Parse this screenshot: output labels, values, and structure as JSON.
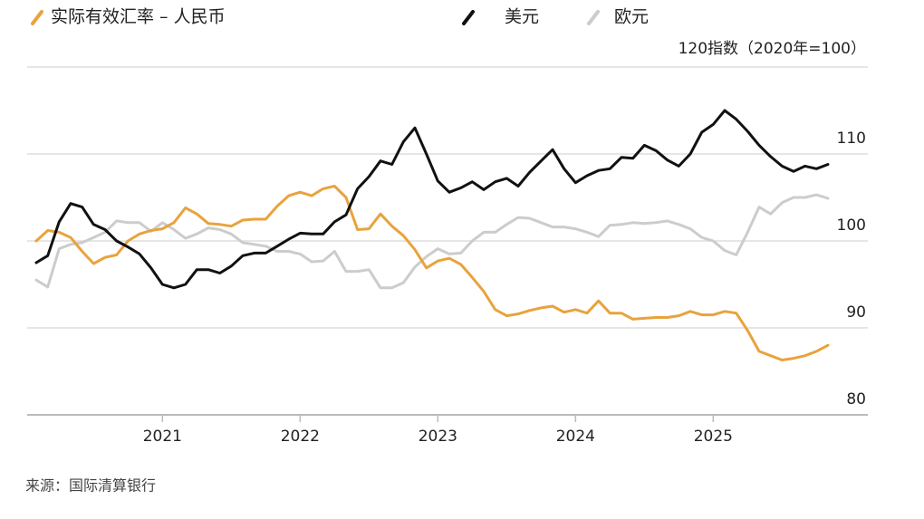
{
  "chart_data": {
    "type": "line",
    "categories": [
      null,
      null,
      null,
      null,
      null,
      null,
      null,
      null,
      null,
      null,
      null,
      "2021",
      null,
      null,
      null,
      null,
      null,
      null,
      null,
      null,
      null,
      null,
      null,
      "2022",
      null,
      null,
      null,
      null,
      null,
      null,
      null,
      null,
      null,
      null,
      null,
      "2023",
      null,
      null,
      null,
      null,
      null,
      null,
      null,
      null,
      null,
      null,
      null,
      "2024",
      null,
      null,
      null,
      null,
      null,
      null,
      null,
      null,
      null,
      null,
      null,
      "2025",
      null,
      null,
      null,
      null,
      null,
      null,
      null,
      null,
      null,
      null
    ],
    "series": [
      {
        "name": "实际有效汇率 – 人民币",
        "color": "#e8a33d",
        "values": [
          100,
          101.2,
          101,
          100.4,
          98.8,
          97.4,
          98.1,
          98.4,
          100,
          100.8,
          101.2,
          101.4,
          102.1,
          103.8,
          103.1,
          102,
          101.9,
          101.7,
          102.4,
          102.5,
          102.5,
          104,
          105.2,
          105.6,
          105.2,
          106,
          106.3,
          105,
          101.3,
          101.4,
          103.1,
          101.7,
          100.6,
          99,
          96.9,
          97.7,
          98,
          97.3,
          95.8,
          94.2,
          92.1,
          91.4,
          91.6,
          92,
          92.3,
          92.5,
          91.8,
          92.1,
          91.7,
          93.1,
          91.7,
          91.7,
          91,
          91.1,
          91.2,
          91.2,
          91.4,
          91.9,
          91.5,
          91.5,
          91.9,
          91.7,
          89.7,
          87.3,
          86.8,
          86.3,
          86.5,
          86.8,
          87.3,
          88
        ]
      },
      {
        "name": "美元",
        "color": "#111111",
        "values": [
          97.5,
          98.3,
          102.2,
          104.3,
          103.9,
          101.9,
          101.3,
          100,
          99.3,
          98.5,
          96.9,
          95,
          94.6,
          95,
          96.7,
          96.7,
          96.3,
          97.1,
          98.3,
          98.6,
          98.6,
          99.4,
          100.2,
          100.9,
          100.8,
          100.8,
          102.2,
          103,
          106,
          107.4,
          109.2,
          108.8,
          111.4,
          113,
          110,
          106.9,
          105.6,
          106.1,
          106.8,
          105.9,
          106.8,
          107.2,
          106.3,
          107.9,
          109.2,
          110.5,
          108.3,
          106.7,
          107.5,
          108.1,
          108.3,
          109.6,
          109.5,
          111,
          110.4,
          109.3,
          108.6,
          110,
          112.5,
          113.4,
          115,
          114,
          112.6,
          111,
          109.7,
          108.6,
          108,
          108.6,
          108.3,
          108.8
        ]
      },
      {
        "name": "欧元",
        "color": "#cccccc",
        "values": [
          95.5,
          94.7,
          99.1,
          99.6,
          99.8,
          100.4,
          101,
          102.3,
          102.1,
          102.1,
          101.1,
          102.1,
          101.3,
          100.3,
          100.8,
          101.5,
          101.3,
          100.8,
          99.8,
          99.6,
          99.4,
          98.8,
          98.8,
          98.5,
          97.6,
          97.7,
          98.8,
          96.5,
          96.5,
          96.7,
          94.6,
          94.6,
          95.2,
          97,
          98.2,
          99.1,
          98.5,
          98.6,
          100,
          101,
          101,
          101.9,
          102.7,
          102.6,
          102.1,
          101.6,
          101.6,
          101.4,
          101,
          100.5,
          101.8,
          101.9,
          102.1,
          102,
          102.1,
          102.3,
          101.9,
          101.4,
          100.4,
          100,
          98.9,
          98.4,
          101,
          103.9,
          103.1,
          104.4,
          105,
          105,
          105.3,
          104.9
        ]
      }
    ],
    "ylim": [
      80,
      120
    ],
    "yticks": [
      80,
      90,
      100,
      110,
      {
        "value": 120,
        "label": "120指数（2020年=100）"
      }
    ],
    "grid": true,
    "source": "来源：国际清算银行"
  }
}
